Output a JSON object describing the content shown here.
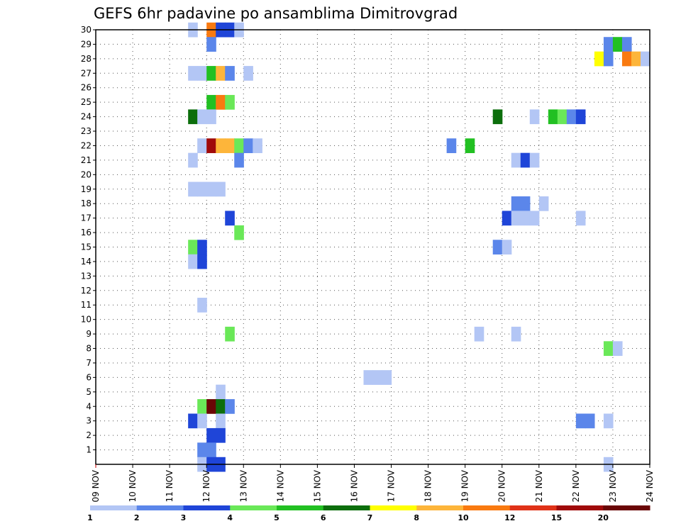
{
  "chart_data": {
    "type": "heatmap",
    "title": "GEFS 6hr padavine po ansamblima Dimitrovgrad",
    "x_tick_labels": [
      "09 NOV",
      "10 NOV",
      "11 NOV",
      "12 NOV",
      "13 NOV",
      "14 NOV",
      "15 NOV",
      "16 NOV",
      "17 NOV",
      "18 NOV",
      "19 NOV",
      "20 NOV",
      "21 NOV",
      "22 NOV",
      "23 NOV",
      "24 NOV"
    ],
    "y_tick_labels": [
      "1",
      "2",
      "3",
      "4",
      "5",
      "6",
      "7",
      "8",
      "9",
      "10",
      "11",
      "12",
      "13",
      "14",
      "15",
      "16",
      "17",
      "18",
      "19",
      "20",
      "21",
      "22",
      "23",
      "24",
      "25",
      "26",
      "27",
      "28",
      "29",
      "30"
    ],
    "xlim_days": [
      0,
      15
    ],
    "ylim": [
      0,
      30
    ],
    "time_step_hours": 6,
    "grid": "dotted",
    "colorbar": {
      "labels": [
        "1",
        "2",
        "3",
        "4",
        "5",
        "6",
        "7",
        "8",
        "10",
        "12",
        "15",
        "20"
      ],
      "colors": [
        "#b3c6f5",
        "#5b86ea",
        "#1f45d8",
        "#6ae858",
        "#22c022",
        "#0c6e0c",
        "#ffff00",
        "#fdb53a",
        "#f97a10",
        "#e03218",
        "#a00a0a",
        "#6a0606"
      ]
    },
    "cells": [
      {
        "member": 30,
        "day": 2.5,
        "cls": 0
      },
      {
        "member": 30,
        "day": 3.0,
        "cls": 8
      },
      {
        "member": 30,
        "day": 3.25,
        "cls": 2
      },
      {
        "member": 30,
        "day": 3.5,
        "cls": 2
      },
      {
        "member": 30,
        "day": 3.75,
        "cls": 0
      },
      {
        "member": 29,
        "day": 3.0,
        "cls": 1
      },
      {
        "member": 29,
        "day": 13.75,
        "cls": 1
      },
      {
        "member": 29,
        "day": 14.0,
        "cls": 4
      },
      {
        "member": 29,
        "day": 14.25,
        "cls": 1
      },
      {
        "member": 28,
        "day": 13.5,
        "cls": 6
      },
      {
        "member": 28,
        "day": 13.75,
        "cls": 1
      },
      {
        "member": 28,
        "day": 14.25,
        "cls": 8
      },
      {
        "member": 28,
        "day": 14.5,
        "cls": 7
      },
      {
        "member": 28,
        "day": 14.75,
        "cls": 0
      },
      {
        "member": 27,
        "day": 2.5,
        "cls": 0
      },
      {
        "member": 27,
        "day": 2.75,
        "cls": 0
      },
      {
        "member": 27,
        "day": 3.0,
        "cls": 4
      },
      {
        "member": 27,
        "day": 3.25,
        "cls": 7
      },
      {
        "member": 27,
        "day": 3.5,
        "cls": 1
      },
      {
        "member": 27,
        "day": 4.0,
        "cls": 0
      },
      {
        "member": 25,
        "day": 3.0,
        "cls": 4
      },
      {
        "member": 25,
        "day": 3.25,
        "cls": 8
      },
      {
        "member": 25,
        "day": 3.5,
        "cls": 3
      },
      {
        "member": 24,
        "day": 2.5,
        "cls": 5
      },
      {
        "member": 24,
        "day": 2.75,
        "cls": 0
      },
      {
        "member": 24,
        "day": 3.0,
        "cls": 0
      },
      {
        "member": 24,
        "day": 10.75,
        "cls": 5
      },
      {
        "member": 24,
        "day": 11.75,
        "cls": 0
      },
      {
        "member": 24,
        "day": 12.25,
        "cls": 4
      },
      {
        "member": 24,
        "day": 12.5,
        "cls": 3
      },
      {
        "member": 24,
        "day": 12.75,
        "cls": 1
      },
      {
        "member": 24,
        "day": 13.0,
        "cls": 2
      },
      {
        "member": 22,
        "day": 2.75,
        "cls": 0
      },
      {
        "member": 22,
        "day": 3.0,
        "cls": 10
      },
      {
        "member": 22,
        "day": 3.25,
        "cls": 7
      },
      {
        "member": 22,
        "day": 3.5,
        "cls": 7
      },
      {
        "member": 22,
        "day": 3.75,
        "cls": 3
      },
      {
        "member": 22,
        "day": 4.0,
        "cls": 1
      },
      {
        "member": 22,
        "day": 4.25,
        "cls": 0
      },
      {
        "member": 22,
        "day": 9.5,
        "cls": 1
      },
      {
        "member": 22,
        "day": 10.0,
        "cls": 4
      },
      {
        "member": 21,
        "day": 2.5,
        "cls": 0
      },
      {
        "member": 21,
        "day": 3.75,
        "cls": 1
      },
      {
        "member": 21,
        "day": 11.25,
        "cls": 0
      },
      {
        "member": 21,
        "day": 11.5,
        "cls": 2
      },
      {
        "member": 21,
        "day": 11.75,
        "cls": 0
      },
      {
        "member": 19,
        "day": 2.5,
        "cls": 0
      },
      {
        "member": 19,
        "day": 2.75,
        "cls": 0
      },
      {
        "member": 19,
        "day": 3.0,
        "cls": 0
      },
      {
        "member": 19,
        "day": 3.25,
        "cls": 0
      },
      {
        "member": 18,
        "day": 11.25,
        "cls": 1
      },
      {
        "member": 18,
        "day": 11.5,
        "cls": 1
      },
      {
        "member": 18,
        "day": 12.0,
        "cls": 0
      },
      {
        "member": 17,
        "day": 3.5,
        "cls": 2
      },
      {
        "member": 17,
        "day": 11.0,
        "cls": 2
      },
      {
        "member": 17,
        "day": 11.25,
        "cls": 0
      },
      {
        "member": 17,
        "day": 11.5,
        "cls": 0
      },
      {
        "member": 17,
        "day": 11.75,
        "cls": 0
      },
      {
        "member": 17,
        "day": 13.0,
        "cls": 0
      },
      {
        "member": 16,
        "day": 3.75,
        "cls": 3
      },
      {
        "member": 15,
        "day": 2.5,
        "cls": 3
      },
      {
        "member": 15,
        "day": 2.75,
        "cls": 2
      },
      {
        "member": 15,
        "day": 10.75,
        "cls": 1
      },
      {
        "member": 15,
        "day": 11.0,
        "cls": 0
      },
      {
        "member": 14,
        "day": 2.5,
        "cls": 0
      },
      {
        "member": 14,
        "day": 2.75,
        "cls": 2
      },
      {
        "member": 11,
        "day": 2.75,
        "cls": 0
      },
      {
        "member": 9,
        "day": 3.5,
        "cls": 3
      },
      {
        "member": 9,
        "day": 10.25,
        "cls": 0
      },
      {
        "member": 9,
        "day": 11.25,
        "cls": 0
      },
      {
        "member": 8,
        "day": 13.75,
        "cls": 3
      },
      {
        "member": 8,
        "day": 14.0,
        "cls": 0
      },
      {
        "member": 6,
        "day": 7.25,
        "cls": 0
      },
      {
        "member": 6,
        "day": 7.5,
        "cls": 0
      },
      {
        "member": 6,
        "day": 7.75,
        "cls": 0
      },
      {
        "member": 5,
        "day": 3.25,
        "cls": 0
      },
      {
        "member": 4,
        "day": 2.75,
        "cls": 3
      },
      {
        "member": 4,
        "day": 3.0,
        "cls": 11
      },
      {
        "member": 4,
        "day": 3.25,
        "cls": 5
      },
      {
        "member": 4,
        "day": 3.5,
        "cls": 1
      },
      {
        "member": 3,
        "day": 2.5,
        "cls": 2
      },
      {
        "member": 3,
        "day": 2.75,
        "cls": 0
      },
      {
        "member": 3,
        "day": 3.25,
        "cls": 0
      },
      {
        "member": 3,
        "day": 13.0,
        "cls": 1
      },
      {
        "member": 3,
        "day": 13.25,
        "cls": 1
      },
      {
        "member": 3,
        "day": 13.75,
        "cls": 0
      },
      {
        "member": 2,
        "day": 3.0,
        "cls": 2
      },
      {
        "member": 2,
        "day": 3.25,
        "cls": 2
      },
      {
        "member": 1,
        "day": 2.75,
        "cls": 1
      },
      {
        "member": 1,
        "day": 3.0,
        "cls": 1
      },
      {
        "member": 0,
        "day": 2.75,
        "cls": 0
      },
      {
        "member": 0,
        "day": 3.0,
        "cls": 2
      },
      {
        "member": 0,
        "day": 3.25,
        "cls": 2
      },
      {
        "member": 0,
        "day": 13.75,
        "cls": 0
      }
    ]
  }
}
